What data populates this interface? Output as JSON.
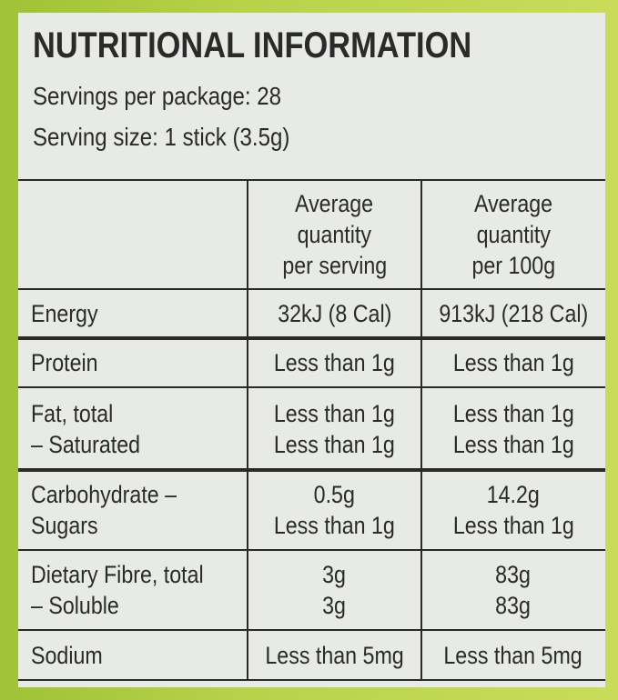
{
  "title": "NUTRITIONAL INFORMATION",
  "servings": [
    "Servings per package: 28",
    "Serving size: 1 stick (3.5g)"
  ],
  "table": {
    "header": [
      [
        "Average",
        "quantity",
        "per serving"
      ],
      [
        "Average",
        "quantity",
        "per 100g"
      ]
    ],
    "rows": [
      {
        "nutrient": [
          "Energy"
        ],
        "per_serving": [
          "32kJ (8 Cal)"
        ],
        "per_100g": [
          "913kJ (218 Cal)"
        ]
      },
      {
        "nutrient": [
          "Protein"
        ],
        "per_serving": [
          "Less than 1g"
        ],
        "per_100g": [
          "Less than 1g"
        ]
      },
      {
        "nutrient": [
          "Fat, total",
          "– Saturated"
        ],
        "per_serving": [
          "Less than 1g",
          "Less than 1g"
        ],
        "per_100g": [
          "Less than 1g",
          "Less than 1g"
        ]
      },
      {
        "nutrient": [
          "Carbohydrate –",
          "Sugars"
        ],
        "per_serving": [
          "0.5g",
          "Less than 1g"
        ],
        "per_100g": [
          "14.2g",
          "Less than 1g"
        ]
      },
      {
        "nutrient": [
          "Dietary Fibre, total",
          "– Soluble"
        ],
        "per_serving": [
          "3g",
          "3g"
        ],
        "per_100g": [
          "83g",
          "83g"
        ]
      },
      {
        "nutrient": [
          "Sodium"
        ],
        "per_serving": [
          "Less than 5mg"
        ],
        "per_100g": [
          "Less than 5mg"
        ]
      }
    ]
  }
}
